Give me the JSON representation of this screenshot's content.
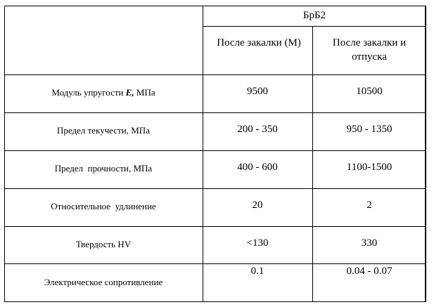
{
  "table": {
    "group_header": "БрБ2",
    "col_headers": [
      "После закалки (М)",
      "После закалки и отпуска"
    ],
    "rows": [
      {
        "label_pre": "Модуль упругости ",
        "label_em": "E,",
        "label_post": " МПа",
        "values": [
          "9500",
          "10500"
        ]
      },
      {
        "label": "Предел текучести, МПа",
        "values": [
          "200 - 350",
          "950 - 1350"
        ]
      },
      {
        "label": "Предел  прочности, МПа",
        "values": [
          "400 - 600",
          "1100-1500"
        ]
      },
      {
        "label": "Относительное  удлинение",
        "values": [
          "20",
          "2"
        ]
      },
      {
        "label": "Твердость HV",
        "values": [
          "<130",
          "330"
        ]
      },
      {
        "label": "Электрическое сопротивление",
        "values": [
          "0.1",
          "0.04 - 0.07"
        ]
      }
    ]
  }
}
